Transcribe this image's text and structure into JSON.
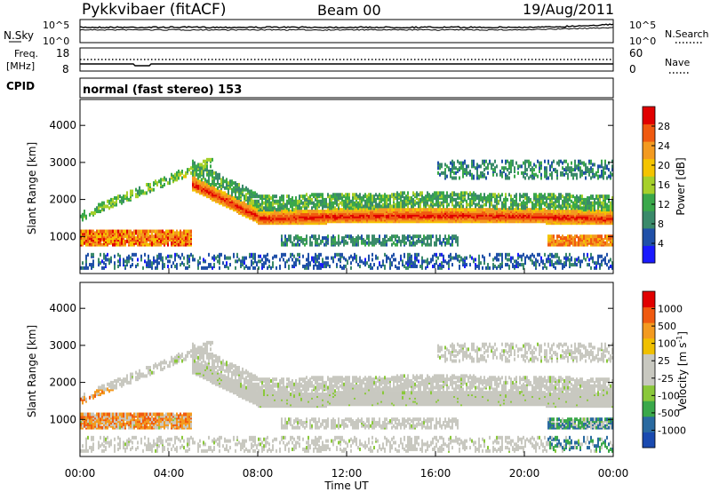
{
  "header": {
    "title": "Pykkvibaer (fitACF)",
    "beam": "Beam 00",
    "date": "19/Aug/2011"
  },
  "strips": {
    "nsky": {
      "label": "N.Sky",
      "ticks_left": [
        "10^5",
        "10^0"
      ],
      "ticks_right": [
        "10^5",
        "10^0"
      ],
      "right_label": "N.Search"
    },
    "freq": {
      "label_top": "Freq.",
      "label_bottom": "[MHz]",
      "ticks_left": [
        "18",
        "8"
      ],
      "ticks_right": [
        "60",
        "0"
      ],
      "right_label": "Nave"
    },
    "cpid": {
      "label": "CPID",
      "mode": "normal (fast stereo) 153"
    }
  },
  "colors": {
    "power_scale": [
      "#1a1aff",
      "#2050a8",
      "#3a8a6a",
      "#3aa84a",
      "#a6d02a",
      "#f4c400",
      "#f39a20",
      "#f05a10",
      "#e10000"
    ],
    "velocity_scale": [
      "#e10000",
      "#f05a10",
      "#f39a20",
      "#f0c000",
      "#c8c8c0",
      "#c8c8c0",
      "#8ac83a",
      "#3aa84a",
      "#2a6aa0",
      "#1a4ab0"
    ]
  },
  "chart_data": [
    {
      "type": "heatmap",
      "panel": "power",
      "ylabel": "Slant Range [km]",
      "y_ticks": [
        "4000",
        "3000",
        "2000",
        "1000"
      ],
      "ylim": [
        0,
        4700
      ],
      "xlim": [
        0,
        24
      ],
      "colorbar": {
        "label": "Power [dB]",
        "ticks": [
          "28",
          "24",
          "20",
          "16",
          "12",
          "8",
          "4"
        ],
        "range": [
          0,
          32
        ]
      }
    },
    {
      "type": "heatmap",
      "panel": "velocity",
      "ylabel": "Slant Range [km]",
      "y_ticks": [
        "4000",
        "3000",
        "2000",
        "1000"
      ],
      "ylim": [
        0,
        4700
      ],
      "xlim": [
        0,
        24
      ],
      "xlabel": "Time UT",
      "x_ticks": [
        "00:00",
        "04:00",
        "08:00",
        "12:00",
        "16:00",
        "20:00",
        "00:00"
      ],
      "colorbar": {
        "label": "Velocity [m s",
        "unit_suffix": "-1",
        "label_close": "]",
        "ticks": [
          "1000",
          "500",
          "100",
          "25",
          "-25",
          "-100",
          "-500",
          "-1000"
        ],
        "range": [
          -1000,
          1000
        ]
      }
    }
  ]
}
